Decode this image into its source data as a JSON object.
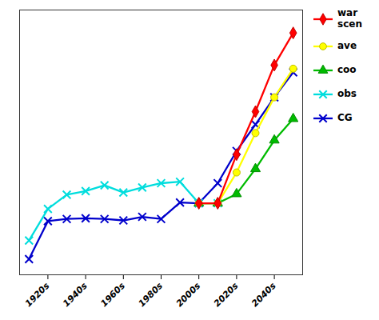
{
  "chart_data": {
    "type": "line",
    "series": [
      {
        "name": "war\nscen",
        "color": "#FF0000",
        "marker": "diamond",
        "x": [
          9,
          10,
          11,
          12,
          13,
          14
        ],
        "values": [
          0.0,
          0.0,
          0.68,
          1.28,
          1.93,
          2.38
        ]
      },
      {
        "name": "ave",
        "color": "#FFFF00",
        "marker": "circle",
        "x": [
          9,
          10,
          11,
          12,
          13,
          14
        ],
        "values": [
          0.0,
          0.0,
          0.43,
          0.98,
          1.48,
          1.88
        ]
      },
      {
        "name": "coo",
        "color": "#00BB00",
        "marker": "triangle",
        "x": [
          9,
          10,
          11,
          12,
          13,
          14
        ],
        "values": [
          0.0,
          0.0,
          0.13,
          0.48,
          0.88,
          1.18
        ]
      },
      {
        "name": "obs",
        "color": "#00DDDD",
        "marker": "x",
        "x": [
          0,
          1,
          2,
          3,
          4,
          5,
          6,
          7,
          8,
          9,
          10
        ],
        "values": [
          -0.52,
          -0.08,
          0.12,
          0.17,
          0.25,
          0.15,
          0.22,
          0.28,
          0.3,
          0.0,
          0.0
        ]
      },
      {
        "name": "CG",
        "color": "#0000CC",
        "marker": "x",
        "x": [
          0,
          1,
          2,
          3,
          4,
          5,
          6,
          7,
          8,
          9,
          10,
          11,
          12,
          13,
          14
        ],
        "values": [
          -0.78,
          -0.25,
          -0.22,
          -0.21,
          -0.22,
          -0.24,
          -0.19,
          -0.22,
          0.01,
          0.0,
          0.28,
          0.73,
          1.1,
          1.48,
          1.83
        ]
      }
    ],
    "xlim": [
      -0.5,
      14.5
    ],
    "xticks": [
      {
        "value": 1,
        "label": "1920s"
      },
      {
        "value": 3,
        "label": "1940s"
      },
      {
        "value": 5,
        "label": "1960s"
      },
      {
        "value": 7,
        "label": "1980s"
      },
      {
        "value": 9,
        "label": "2000s"
      },
      {
        "value": 11,
        "label": "2020s"
      },
      {
        "value": 13,
        "label": "2040s"
      }
    ],
    "ylim": [
      -1.0,
      2.7
    ],
    "yticks": [],
    "tick_labels": "x",
    "grid": false,
    "legend": "right"
  }
}
